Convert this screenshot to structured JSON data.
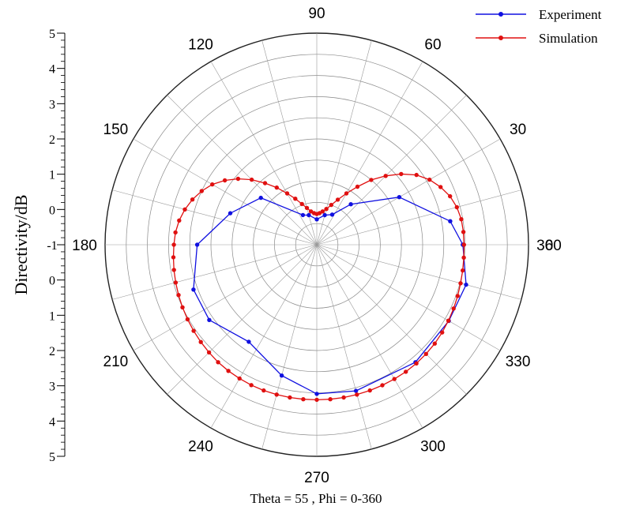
{
  "chart_data": {
    "type": "line",
    "polar": true,
    "angle_unit": "degrees",
    "radial_unit": "dB",
    "angle_ticks": [
      0,
      30,
      60,
      90,
      120,
      150,
      180,
      210,
      240,
      270,
      300,
      330,
      360
    ],
    "angle_tick_labels": [
      "0",
      "30",
      "60",
      "90",
      "120",
      "150",
      "180",
      "210",
      "240",
      "270",
      "300",
      "330",
      "360"
    ],
    "rlim": [
      -5,
      5
    ],
    "ring_values": [
      -5,
      -4,
      -3,
      -2,
      -1,
      0,
      1,
      2,
      3,
      4,
      5
    ],
    "radial_axis_labels": [
      "5",
      "4",
      "3",
      "2",
      "1",
      "0",
      "-1",
      "0",
      "1",
      "2",
      "3",
      "4",
      "5"
    ],
    "ylabel": "Directivity/dB",
    "xlabel": "Theta = 55 , Phi = 0-360",
    "grid": true,
    "legend_position": "top-right",
    "series": [
      {
        "name": "Experiment",
        "color": "#1010e0",
        "marker": "circle",
        "points": [
          {
            "theta": 0,
            "r": 1.9
          },
          {
            "theta": 10,
            "r": 1.4
          },
          {
            "theta": 30,
            "r": -0.5
          },
          {
            "theta": 50,
            "r": -2.5
          },
          {
            "theta": 63,
            "r": -3.4
          },
          {
            "theta": 75,
            "r": -3.55
          },
          {
            "theta": 90,
            "r": -3.8
          },
          {
            "theta": 105,
            "r": -3.55
          },
          {
            "theta": 115,
            "r": -3.45
          },
          {
            "theta": 140,
            "r": -1.55
          },
          {
            "theta": 160,
            "r": -0.65
          },
          {
            "theta": 180,
            "r": 0.65
          },
          {
            "theta": 200,
            "r": 1.2
          },
          {
            "theta": 215,
            "r": 1.2
          },
          {
            "theta": 235,
            "r": 0.6
          },
          {
            "theta": 255,
            "r": 1.4
          },
          {
            "theta": 270,
            "r": 2.05
          },
          {
            "theta": 285,
            "r": 2.15
          },
          {
            "theta": 310,
            "r": 2.25
          },
          {
            "theta": 330,
            "r": 2.2
          },
          {
            "theta": 345,
            "r": 2.3
          },
          {
            "theta": 360,
            "r": 1.9
          }
        ]
      },
      {
        "name": "Simulation",
        "color": "#e01010",
        "marker": "circle",
        "points": [
          {
            "theta": 0,
            "r": 1.95
          },
          {
            "theta": 5,
            "r": 1.95
          },
          {
            "theta": 10,
            "r": 1.93
          },
          {
            "theta": 15,
            "r": 1.85
          },
          {
            "theta": 20,
            "r": 1.7
          },
          {
            "theta": 25,
            "r": 1.45
          },
          {
            "theta": 30,
            "r": 1.15
          },
          {
            "theta": 35,
            "r": 0.75
          },
          {
            "theta": 40,
            "r": 0.2
          },
          {
            "theta": 45,
            "r": -0.4
          },
          {
            "theta": 50,
            "r": -1.0
          },
          {
            "theta": 55,
            "r": -1.65
          },
          {
            "theta": 60,
            "r": -2.2
          },
          {
            "theta": 65,
            "r": -2.65
          },
          {
            "theta": 70,
            "r": -3.0
          },
          {
            "theta": 75,
            "r": -3.25
          },
          {
            "theta": 80,
            "r": -3.4
          },
          {
            "theta": 85,
            "r": -3.5
          },
          {
            "theta": 90,
            "r": -3.55
          },
          {
            "theta": 95,
            "r": -3.5
          },
          {
            "theta": 100,
            "r": -3.4
          },
          {
            "theta": 105,
            "r": -3.2
          },
          {
            "theta": 110,
            "r": -2.95
          },
          {
            "theta": 115,
            "r": -2.6
          },
          {
            "theta": 120,
            "r": -2.2
          },
          {
            "theta": 125,
            "r": -1.7
          },
          {
            "theta": 130,
            "r": -1.2
          },
          {
            "theta": 135,
            "r": -0.65
          },
          {
            "theta": 140,
            "r": -0.15
          },
          {
            "theta": 145,
            "r": 0.3
          },
          {
            "theta": 150,
            "r": 0.7
          },
          {
            "theta": 155,
            "r": 1.0
          },
          {
            "theta": 160,
            "r": 1.25
          },
          {
            "theta": 165,
            "r": 1.45
          },
          {
            "theta": 170,
            "r": 1.6
          },
          {
            "theta": 175,
            "r": 1.7
          },
          {
            "theta": 180,
            "r": 1.75
          },
          {
            "theta": 185,
            "r": 1.8
          },
          {
            "theta": 190,
            "r": 1.85
          },
          {
            "theta": 195,
            "r": 1.9
          },
          {
            "theta": 200,
            "r": 1.95
          },
          {
            "theta": 205,
            "r": 2.0
          },
          {
            "theta": 210,
            "r": 2.05
          },
          {
            "theta": 215,
            "r": 2.1
          },
          {
            "theta": 220,
            "r": 2.15
          },
          {
            "theta": 225,
            "r": 2.2
          },
          {
            "theta": 230,
            "r": 2.25
          },
          {
            "theta": 235,
            "r": 2.28
          },
          {
            "theta": 240,
            "r": 2.3
          },
          {
            "theta": 245,
            "r": 2.32
          },
          {
            "theta": 250,
            "r": 2.33
          },
          {
            "theta": 255,
            "r": 2.33
          },
          {
            "theta": 260,
            "r": 2.33
          },
          {
            "theta": 265,
            "r": 2.33
          },
          {
            "theta": 270,
            "r": 2.33
          },
          {
            "theta": 275,
            "r": 2.33
          },
          {
            "theta": 280,
            "r": 2.33
          },
          {
            "theta": 285,
            "r": 2.33
          },
          {
            "theta": 290,
            "r": 2.33
          },
          {
            "theta": 295,
            "r": 2.33
          },
          {
            "theta": 300,
            "r": 2.33
          },
          {
            "theta": 305,
            "r": 2.33
          },
          {
            "theta": 310,
            "r": 2.32
          },
          {
            "theta": 315,
            "r": 2.3
          },
          {
            "theta": 320,
            "r": 2.27
          },
          {
            "theta": 325,
            "r": 2.23
          },
          {
            "theta": 330,
            "r": 2.18
          },
          {
            "theta": 335,
            "r": 2.13
          },
          {
            "theta": 340,
            "r": 2.08
          },
          {
            "theta": 345,
            "r": 2.03
          },
          {
            "theta": 350,
            "r": 2.0
          },
          {
            "theta": 355,
            "r": 1.97
          }
        ]
      }
    ]
  }
}
